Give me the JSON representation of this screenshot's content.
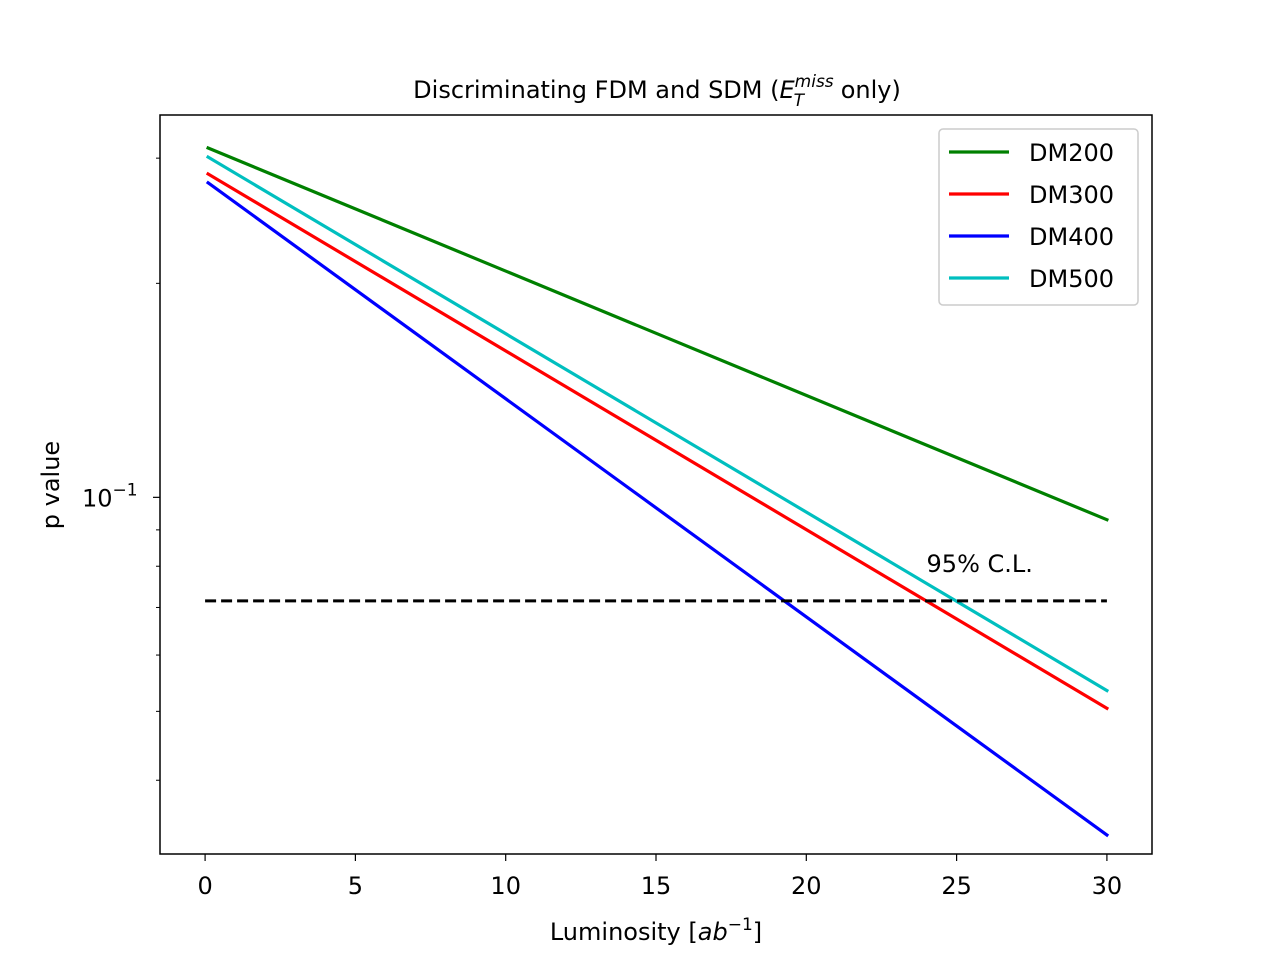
{
  "chart_data": {
    "type": "line",
    "title": {
      "prefix": "Discriminating FDM and SDM (",
      "symbol_base": "E",
      "symbol_subscript": "T",
      "symbol_superscript": "miss",
      "suffix": " only)"
    },
    "xlabel": {
      "prefix": "Luminosity [",
      "math_base": "ab",
      "math_superscript": "−1",
      "suffix": "]"
    },
    "ylabel": "p value",
    "xscale": "linear",
    "yscale": "log",
    "xlim": [
      -1.5,
      31.5
    ],
    "ylim": [
      0.0315,
      0.345
    ],
    "xticks": [
      0,
      5,
      10,
      15,
      20,
      25,
      30
    ],
    "xtick_labels": [
      "0",
      "5",
      "10",
      "15",
      "20",
      "25",
      "30"
    ],
    "yticks_major": [
      {
        "value": 0.1,
        "base": "10",
        "exponent": "−1"
      }
    ],
    "yticks_minor": [
      0.04,
      0.05,
      0.06,
      0.07,
      0.08,
      0.09,
      0.2,
      0.3
    ],
    "grid": false,
    "legend_position": "top-right",
    "series": [
      {
        "name": "DM200",
        "color": "#008000",
        "x": [
          0.1,
          30
        ],
        "y": [
          0.31,
          0.093
        ]
      },
      {
        "name": "DM300",
        "color": "#ff0000",
        "x": [
          0.1,
          30
        ],
        "y": [
          0.285,
          0.0505
        ]
      },
      {
        "name": "DM400",
        "color": "#0000ff",
        "x": [
          0.1,
          30
        ],
        "y": [
          0.277,
          0.0335
        ]
      },
      {
        "name": "DM500",
        "color": "#00bfbf",
        "x": [
          0.1,
          30
        ],
        "y": [
          0.301,
          0.0535
        ]
      }
    ],
    "reference_line": {
      "label": "95% C.L.",
      "value": 0.0715,
      "x_range": [
        0,
        30
      ],
      "style": "dashed",
      "color": "#000000",
      "label_x": 24
    }
  }
}
